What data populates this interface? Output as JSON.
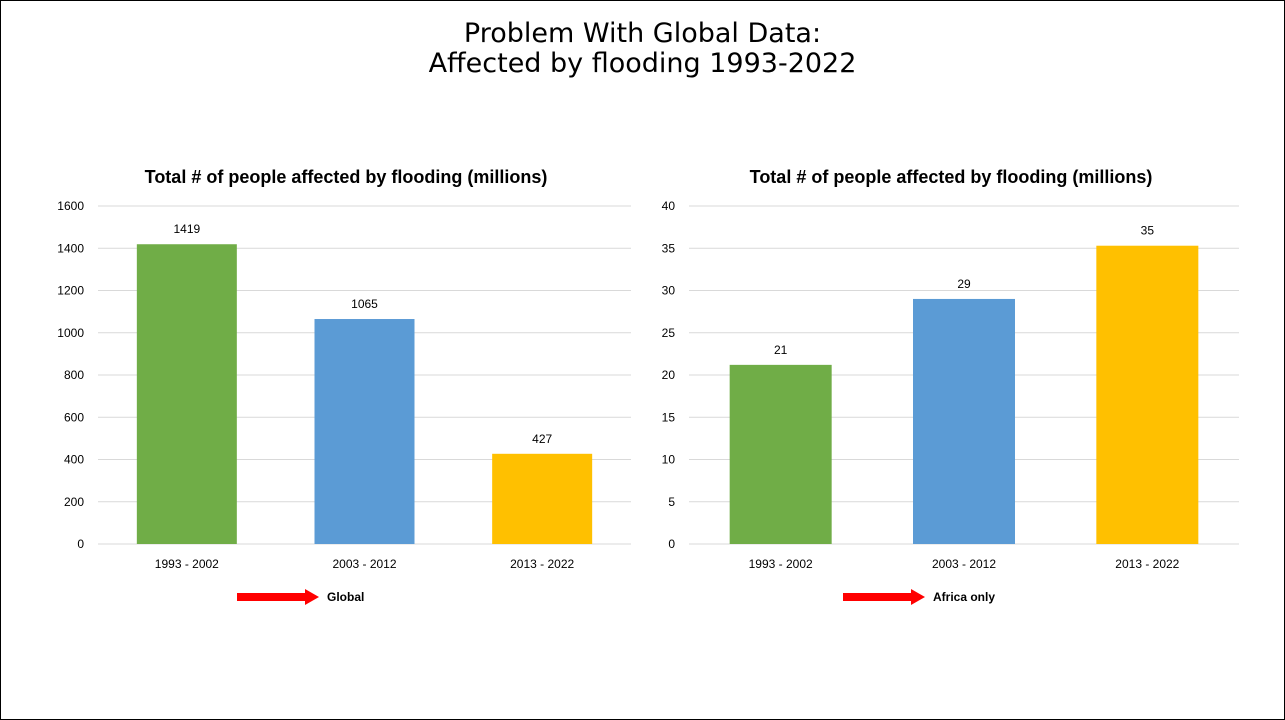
{
  "slide": {
    "title_line1": "Problem With Global Data:",
    "title_line2": "Affected by flooding 1993-2022"
  },
  "colors": {
    "bar1": "#70AD47",
    "bar2": "#5B9BD5",
    "bar3": "#FFC000",
    "arrow": "#FF0000"
  },
  "notes": {
    "global": "Global",
    "africa": "Africa only"
  },
  "chart_data": [
    {
      "type": "bar",
      "title": "Total # of people affected by flooding (millions)",
      "categories": [
        "1993 - 2002",
        "2003 - 2012",
        "2013 - 2022"
      ],
      "values": [
        1419,
        1065,
        427
      ],
      "data_labels": [
        "1419",
        "1065",
        "427"
      ],
      "ylim": [
        0,
        1600
      ],
      "yticks": [
        0,
        200,
        400,
        600,
        800,
        1000,
        1200,
        1400,
        1600
      ],
      "xlabel": "",
      "ylabel": "",
      "grid": true,
      "legend": "none"
    },
    {
      "type": "bar",
      "title": "Total # of people affected by flooding (millions)",
      "categories": [
        "1993 - 2002",
        "2003 - 2012",
        "2013 - 2022"
      ],
      "values": [
        21.2,
        29,
        35.3
      ],
      "data_labels": [
        "21",
        "29",
        "35"
      ],
      "ylim": [
        0,
        40
      ],
      "yticks": [
        0,
        5,
        10,
        15,
        20,
        25,
        30,
        35,
        40
      ],
      "xlabel": "",
      "ylabel": "",
      "grid": true,
      "legend": "none"
    }
  ]
}
